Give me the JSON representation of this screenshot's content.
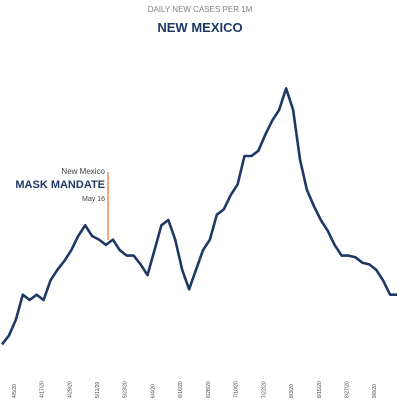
{
  "chart_data": {
    "type": "line",
    "subtitle": "DAILY NEW CASES PER 1M",
    "title": "NEW MEXICO",
    "color": "#1f3864",
    "ylim": [
      0,
      180
    ],
    "annotation": {
      "top": "New Mexico",
      "main": "MASK MANDATE",
      "date": "May 16",
      "color": "#ed7d31"
    },
    "categories": [
      null,
      null,
      "4/5/20",
      null,
      null,
      null,
      "4/17/20",
      null,
      null,
      null,
      "4/29/20",
      null,
      null,
      null,
      "5/11/20",
      null,
      null,
      null,
      "5/23/20",
      null,
      null,
      null,
      "6/4/20",
      null,
      null,
      null,
      "6/16/20",
      null,
      null,
      null,
      "6/28/20",
      null,
      null,
      null,
      "7/10/20",
      null,
      null,
      null,
      "7/22/20",
      null,
      null,
      null,
      "8/3/20",
      null,
      null,
      null,
      "8/15/20",
      null,
      null,
      null,
      "8/27/20",
      null,
      null,
      null,
      "9/8/20",
      null,
      null,
      null
    ],
    "values": [
      20,
      25,
      34,
      48,
      45,
      48,
      45,
      56,
      62,
      67,
      73,
      81,
      87,
      81,
      79,
      76,
      79,
      73,
      70,
      70,
      65,
      59,
      73,
      87,
      90,
      79,
      62,
      51,
      62,
      73,
      79,
      93,
      96,
      104,
      110,
      126,
      126,
      129,
      138,
      146,
      152,
      164,
      152,
      124,
      107,
      98,
      90,
      84,
      76,
      70,
      70,
      69,
      66,
      65,
      62,
      56,
      48,
      48
    ]
  }
}
